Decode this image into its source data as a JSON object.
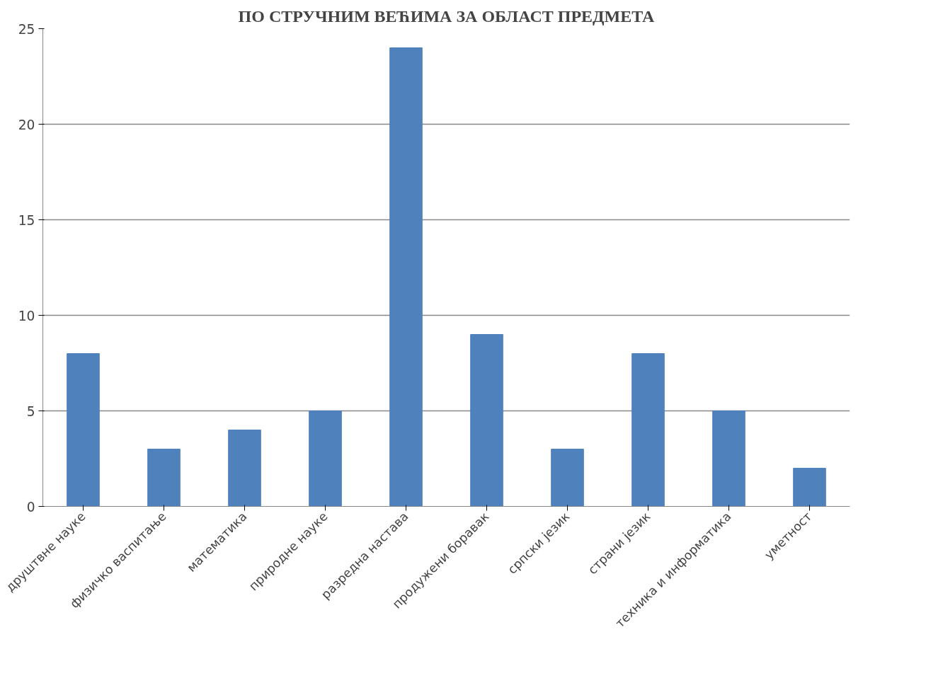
{
  "chart_data": {
    "type": "bar",
    "title": "ПО СТРУЧНИМ ВЕЋИМА ЗА ОБЛАСТ ПРЕДМЕТА",
    "categories": [
      "друштвне науке",
      "физичко васпитање",
      "математика",
      "природне науке",
      "разредна настава",
      "продужени боравак",
      "српски језик",
      "страни језик",
      "техника и информатика",
      "уметност"
    ],
    "values": [
      8,
      3,
      4,
      5,
      24,
      9,
      3,
      8,
      5,
      2
    ],
    "color": "#4f81bd",
    "ylim": [
      0,
      25
    ],
    "yticks": [
      0,
      5,
      10,
      15,
      20,
      25
    ],
    "grid": "y"
  }
}
